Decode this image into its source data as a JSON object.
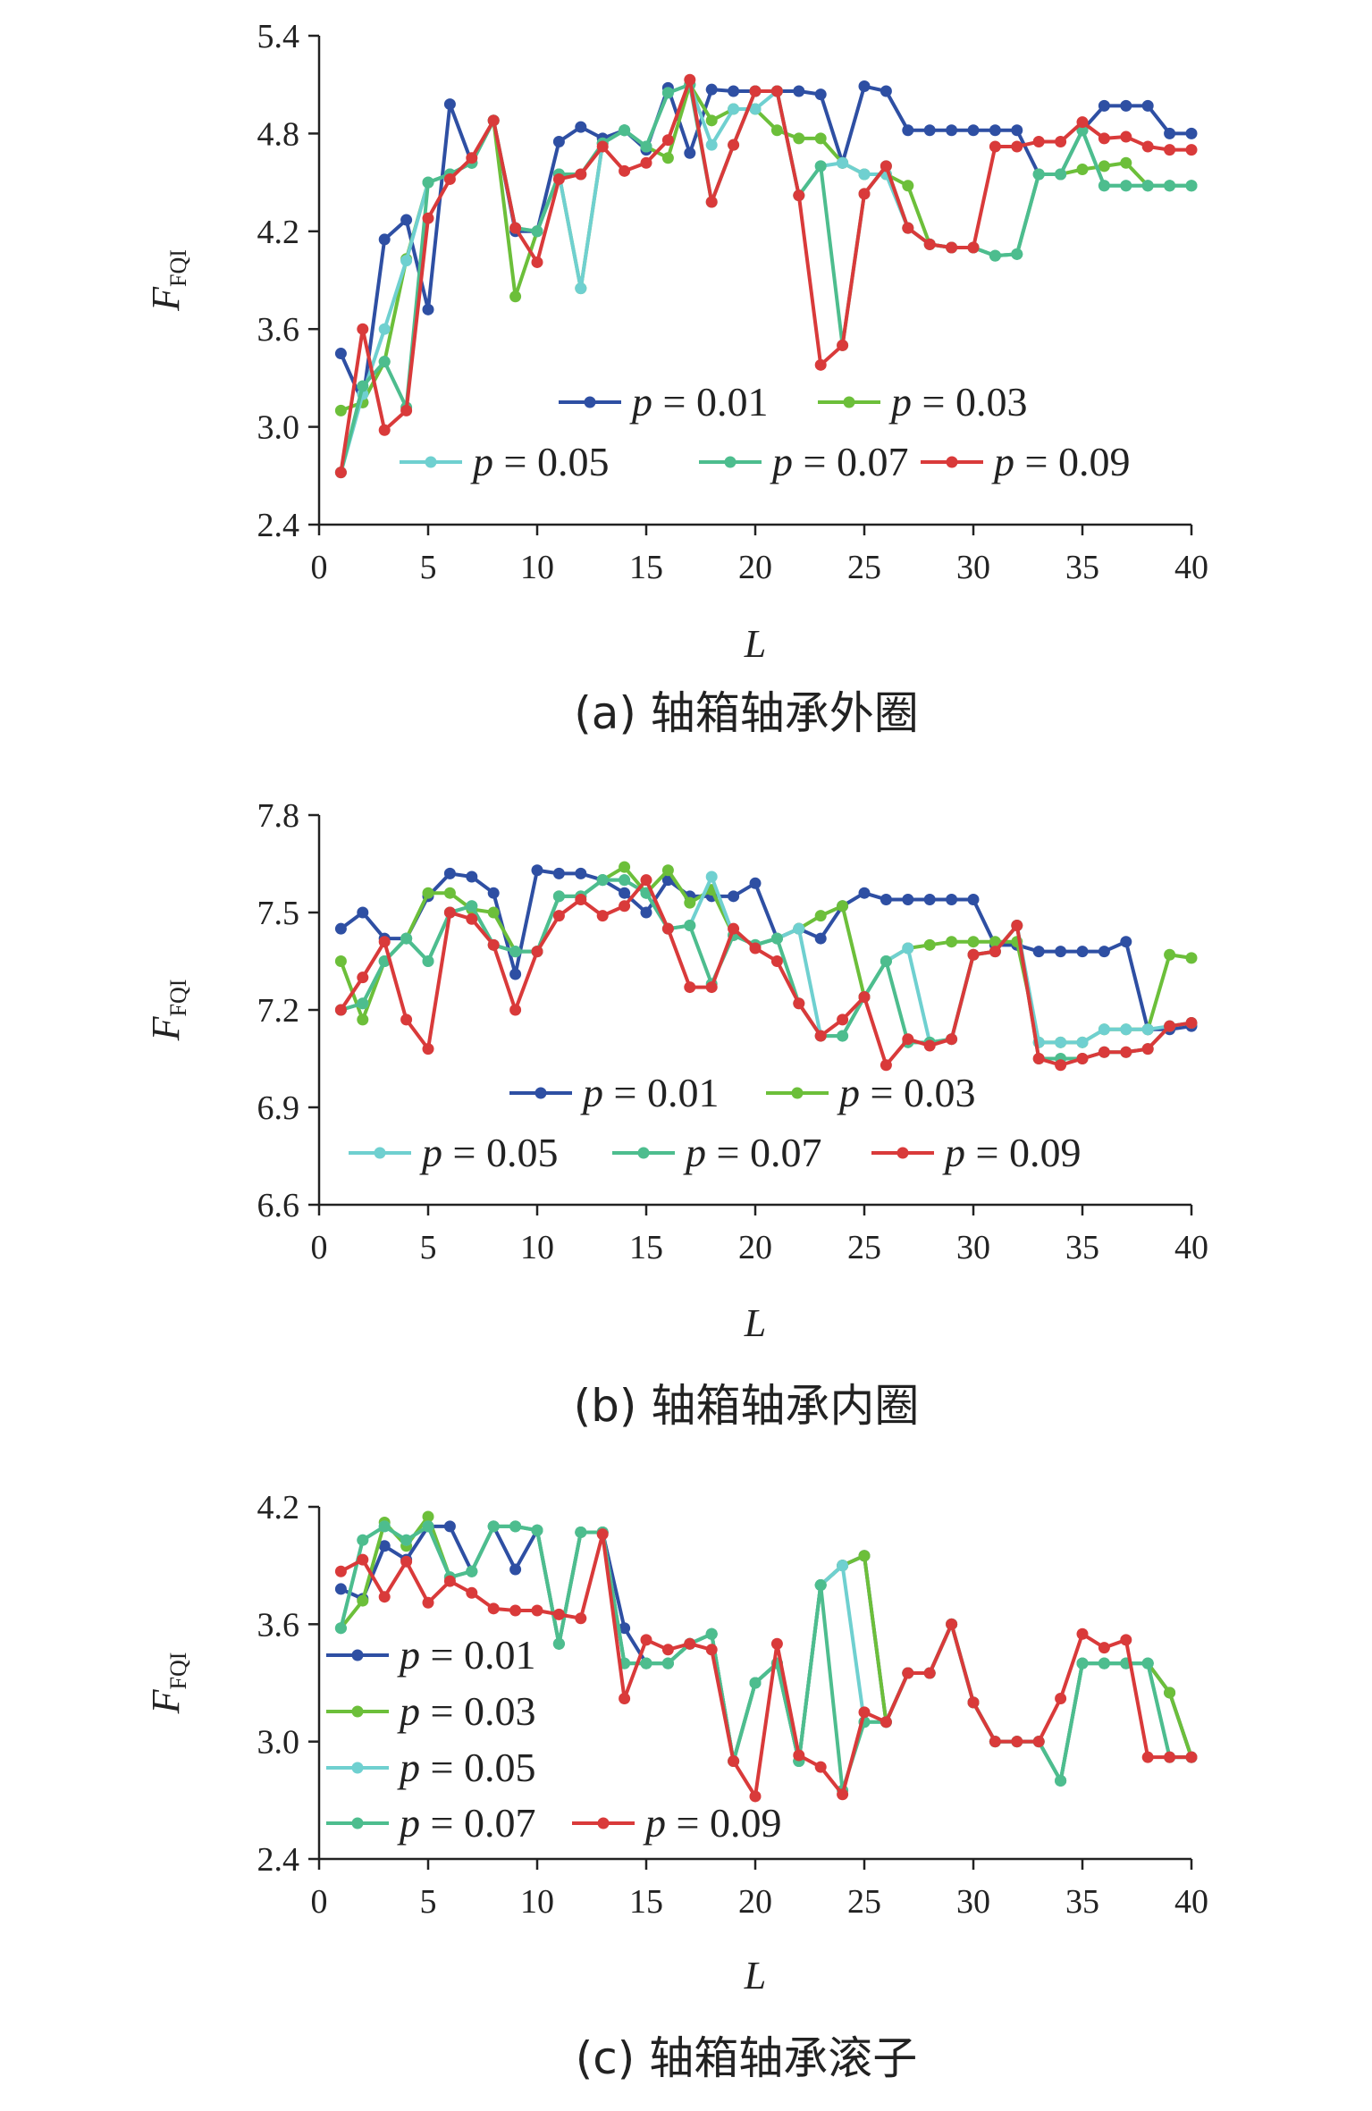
{
  "chart_data": [
    {
      "type": "line",
      "caption": "(a) 轴箱轴承外圈",
      "xlabel": "L",
      "ylabel": "F",
      "ylabel_sub": "FQI",
      "xlim": [
        0,
        40
      ],
      "ylim": [
        2.4,
        5.4
      ],
      "xticks": [
        "0",
        "5",
        "10",
        "15",
        "20",
        "25",
        "30",
        "35",
        "40"
      ],
      "yticks": [
        "2.4",
        "3.0",
        "3.6",
        "4.2",
        "4.8",
        "5.4"
      ],
      "legend_placement": "center",
      "x": [
        1,
        2,
        3,
        4,
        5,
        6,
        7,
        8,
        9,
        10,
        11,
        12,
        13,
        14,
        15,
        16,
        17,
        18,
        19,
        20,
        21,
        22,
        23,
        24,
        25,
        26,
        27,
        28,
        29,
        30,
        31,
        32,
        33,
        34,
        35,
        36,
        37,
        38,
        39,
        40
      ],
      "series": [
        {
          "name": "p = 0.01",
          "symbol": "p",
          "value_text": " = 0.01",
          "color": "#2e4fa3",
          "values": [
            3.45,
            3.15,
            4.15,
            4.27,
            3.72,
            4.98,
            4.62,
            4.88,
            4.2,
            4.2,
            4.75,
            4.84,
            4.77,
            4.82,
            4.7,
            5.08,
            4.68,
            5.07,
            5.06,
            5.06,
            5.06,
            5.06,
            5.04,
            4.62,
            5.09,
            5.06,
            4.82,
            4.82,
            4.82,
            4.82,
            4.82,
            4.82,
            4.55,
            4.55,
            4.82,
            4.97,
            4.97,
            4.97,
            4.8,
            4.8
          ]
        },
        {
          "name": "p = 0.03",
          "symbol": "p",
          "value_text": " = 0.03",
          "color": "#6cbf3a",
          "values": [
            3.1,
            3.15,
            3.4,
            4.03,
            4.5,
            4.55,
            4.62,
            4.88,
            3.8,
            4.2,
            4.55,
            3.85,
            4.74,
            4.82,
            4.72,
            4.65,
            5.1,
            4.88,
            4.95,
            4.95,
            4.82,
            4.77,
            4.77,
            4.62,
            4.55,
            4.55,
            4.48,
            4.12,
            4.1,
            4.1,
            4.05,
            4.06,
            4.55,
            4.55,
            4.58,
            4.6,
            4.62,
            4.48,
            4.48,
            4.48
          ]
        },
        {
          "name": "p = 0.05",
          "symbol": "p",
          "value_text": " = 0.05",
          "color": "#6fd0d0",
          "values": [
            2.72,
            3.2,
            3.6,
            4.02,
            4.5,
            4.55,
            4.62,
            4.88,
            4.22,
            4.2,
            4.55,
            3.85,
            4.74,
            4.82,
            4.72,
            5.05,
            5.1,
            4.73,
            4.95,
            4.95,
            5.06,
            4.42,
            4.6,
            4.62,
            4.55,
            4.55,
            4.22,
            4.12,
            4.1,
            4.1,
            4.05,
            4.06,
            4.55,
            4.55,
            4.82,
            4.48,
            4.48,
            4.48,
            4.48,
            4.48
          ]
        },
        {
          "name": "p = 0.07",
          "symbol": "p",
          "value_text": " = 0.07",
          "color": "#4dbd8e",
          "values": [
            2.72,
            3.25,
            3.4,
            3.12,
            4.5,
            4.55,
            4.62,
            4.88,
            4.22,
            4.2,
            4.55,
            4.55,
            4.74,
            4.82,
            4.72,
            5.05,
            5.1,
            4.38,
            4.73,
            5.06,
            5.06,
            4.42,
            4.6,
            3.5,
            4.43,
            4.6,
            4.22,
            4.12,
            4.1,
            4.1,
            4.05,
            4.06,
            4.55,
            4.55,
            4.82,
            4.48,
            4.48,
            4.48,
            4.48,
            4.48
          ]
        },
        {
          "name": "p = 0.09",
          "symbol": "p",
          "value_text": " = 0.09",
          "color": "#d93a3a",
          "values": [
            2.72,
            3.6,
            2.98,
            3.1,
            4.28,
            4.52,
            4.65,
            4.88,
            4.22,
            4.01,
            4.52,
            4.55,
            4.72,
            4.57,
            4.62,
            4.76,
            5.13,
            4.38,
            4.73,
            5.06,
            5.06,
            4.42,
            3.38,
            3.5,
            4.43,
            4.6,
            4.22,
            4.12,
            4.1,
            4.1,
            4.72,
            4.72,
            4.75,
            4.75,
            4.87,
            4.77,
            4.78,
            4.72,
            4.7,
            4.7
          ]
        }
      ]
    },
    {
      "type": "line",
      "caption": "(b) 轴箱轴承内圈",
      "xlabel": "L",
      "ylabel": "F",
      "ylabel_sub": "FQI",
      "xlim": [
        0,
        40
      ],
      "ylim": [
        6.6,
        7.8
      ],
      "xticks": [
        "0",
        "5",
        "10",
        "15",
        "20",
        "25",
        "30",
        "35",
        "40"
      ],
      "yticks": [
        "6.6",
        "6.9",
        "7.2",
        "7.5",
        "7.8"
      ],
      "legend_placement": "bottom-center",
      "x": [
        1,
        2,
        3,
        4,
        5,
        6,
        7,
        8,
        9,
        10,
        11,
        12,
        13,
        14,
        15,
        16,
        17,
        18,
        19,
        20,
        21,
        22,
        23,
        24,
        25,
        26,
        27,
        28,
        29,
        30,
        31,
        32,
        33,
        34,
        35,
        36,
        37,
        38,
        39,
        40
      ],
      "series": [
        {
          "name": "p = 0.01",
          "symbol": "p",
          "value_text": " = 0.01",
          "color": "#2e4fa3",
          "values": [
            7.45,
            7.5,
            7.42,
            7.42,
            7.55,
            7.62,
            7.61,
            7.56,
            7.31,
            7.63,
            7.62,
            7.62,
            7.6,
            7.56,
            7.5,
            7.6,
            7.55,
            7.55,
            7.55,
            7.59,
            7.42,
            7.45,
            7.42,
            7.52,
            7.56,
            7.54,
            7.54,
            7.54,
            7.54,
            7.54,
            7.4,
            7.4,
            7.38,
            7.38,
            7.38,
            7.38,
            7.41,
            7.14,
            7.14,
            7.15
          ]
        },
        {
          "name": "p = 0.03",
          "symbol": "p",
          "value_text": " = 0.03",
          "color": "#6cbf3a",
          "values": [
            7.35,
            7.17,
            7.35,
            7.42,
            7.56,
            7.56,
            7.51,
            7.5,
            7.38,
            7.38,
            7.55,
            7.55,
            7.6,
            7.64,
            7.56,
            7.63,
            7.53,
            7.57,
            7.43,
            7.4,
            7.42,
            7.45,
            7.49,
            7.52,
            7.24,
            7.35,
            7.39,
            7.4,
            7.41,
            7.41,
            7.41,
            7.41,
            7.1,
            7.1,
            7.1,
            7.14,
            7.14,
            7.14,
            7.37,
            7.36
          ]
        },
        {
          "name": "p = 0.05",
          "symbol": "p",
          "value_text": " = 0.05",
          "color": "#6fd0d0",
          "values": [
            7.2,
            7.22,
            7.35,
            7.42,
            7.35,
            7.5,
            7.52,
            7.4,
            7.38,
            7.38,
            7.55,
            7.55,
            7.6,
            7.6,
            7.56,
            7.45,
            7.46,
            7.61,
            7.43,
            7.4,
            7.42,
            7.45,
            7.12,
            7.12,
            7.24,
            7.35,
            7.39,
            7.1,
            7.11,
            7.37,
            7.38,
            7.46,
            7.1,
            7.1,
            7.1,
            7.14,
            7.14,
            7.14,
            7.15,
            7.16
          ]
        },
        {
          "name": "p = 0.07",
          "symbol": "p",
          "value_text": " = 0.07",
          "color": "#4dbd8e",
          "values": [
            7.2,
            7.22,
            7.35,
            7.42,
            7.35,
            7.5,
            7.52,
            7.4,
            7.38,
            7.38,
            7.55,
            7.55,
            7.6,
            7.6,
            7.56,
            7.45,
            7.46,
            7.28,
            7.43,
            7.4,
            7.42,
            7.22,
            7.12,
            7.12,
            7.24,
            7.35,
            7.1,
            7.1,
            7.11,
            7.37,
            7.38,
            7.46,
            7.05,
            7.05,
            7.05,
            7.07,
            7.07,
            7.08,
            7.15,
            7.16
          ]
        },
        {
          "name": "p = 0.09",
          "symbol": "p",
          "value_text": " = 0.09",
          "color": "#d93a3a",
          "values": [
            7.2,
            7.3,
            7.41,
            7.17,
            7.08,
            7.5,
            7.48,
            7.4,
            7.2,
            7.38,
            7.49,
            7.54,
            7.49,
            7.52,
            7.6,
            7.45,
            7.27,
            7.27,
            7.45,
            7.39,
            7.35,
            7.22,
            7.12,
            7.17,
            7.24,
            7.03,
            7.11,
            7.09,
            7.11,
            7.37,
            7.38,
            7.46,
            7.05,
            7.03,
            7.05,
            7.07,
            7.07,
            7.08,
            7.15,
            7.16
          ]
        }
      ]
    },
    {
      "type": "line",
      "caption": "(c) 轴箱轴承滚子",
      "xlabel": "L",
      "ylabel": "F",
      "ylabel_sub": "FQI",
      "xlim": [
        0,
        40
      ],
      "ylim": [
        2.4,
        4.2
      ],
      "xticks": [
        "0",
        "5",
        "10",
        "15",
        "20",
        "25",
        "30",
        "35",
        "40"
      ],
      "yticks": [
        "2.4",
        "3.0",
        "3.6",
        "4.2"
      ],
      "legend_placement": "left",
      "x": [
        1,
        2,
        3,
        4,
        5,
        6,
        7,
        8,
        9,
        10,
        11,
        12,
        13,
        14,
        15,
        16,
        17,
        18,
        19,
        20,
        21,
        22,
        23,
        24,
        25,
        26,
        27,
        28,
        29,
        30,
        31,
        32,
        33,
        34,
        35,
        36,
        37,
        38,
        39,
        40
      ],
      "series": [
        {
          "name": "p = 0.01",
          "symbol": "p",
          "value_text": " = 0.01",
          "color": "#2e4fa3",
          "values": [
            3.78,
            3.73,
            4.0,
            3.93,
            4.1,
            4.1,
            3.87,
            4.1,
            3.88,
            4.08,
            3.5,
            4.07,
            4.07,
            3.58,
            3.4,
            3.4,
            3.5,
            3.55,
            2.9,
            3.3,
            3.4,
            2.9,
            3.8,
            3.9,
            3.95,
            3.1,
            3.35,
            3.35,
            3.6,
            3.2,
            3.0,
            3.0,
            3.0,
            2.8,
            3.4,
            3.4,
            3.4,
            3.4,
            3.25,
            2.92
          ]
        },
        {
          "name": "p = 0.03",
          "symbol": "p",
          "value_text": " = 0.03",
          "color": "#6cbf3a",
          "values": [
            3.58,
            3.72,
            4.12,
            4.0,
            4.15,
            3.84,
            3.87,
            4.1,
            4.1,
            4.08,
            3.5,
            4.07,
            4.07,
            3.4,
            3.4,
            3.4,
            3.5,
            3.55,
            2.9,
            3.3,
            3.4,
            2.9,
            3.8,
            3.9,
            3.95,
            3.1,
            3.35,
            3.35,
            3.6,
            3.2,
            3.0,
            3.0,
            3.0,
            2.8,
            3.4,
            3.4,
            3.4,
            3.4,
            3.25,
            2.92
          ]
        },
        {
          "name": "p = 0.05",
          "symbol": "p",
          "value_text": " = 0.05",
          "color": "#6fd0d0",
          "values": [
            3.58,
            4.03,
            4.1,
            4.03,
            4.1,
            3.84,
            3.87,
            4.1,
            4.1,
            4.08,
            3.5,
            4.07,
            4.07,
            3.4,
            3.4,
            3.4,
            3.5,
            3.55,
            2.9,
            3.3,
            3.4,
            2.9,
            3.8,
            3.9,
            3.1,
            3.1,
            3.35,
            3.35,
            3.6,
            3.2,
            3.0,
            3.0,
            3.0,
            2.8,
            3.4,
            3.4,
            3.4,
            3.4,
            2.92,
            2.92
          ]
        },
        {
          "name": "p = 0.07",
          "symbol": "p",
          "value_text": " = 0.07",
          "color": "#4dbd8e",
          "values": [
            3.58,
            4.03,
            4.1,
            4.03,
            4.1,
            3.84,
            3.87,
            4.1,
            4.1,
            4.08,
            3.5,
            4.07,
            4.07,
            3.4,
            3.4,
            3.4,
            3.5,
            3.55,
            2.9,
            3.3,
            3.4,
            2.9,
            3.8,
            2.75,
            3.1,
            3.1,
            3.35,
            3.35,
            3.6,
            3.2,
            3.0,
            3.0,
            3.0,
            2.8,
            3.4,
            3.4,
            3.4,
            3.4,
            2.92,
            2.92
          ]
        },
        {
          "name": "p = 0.09",
          "symbol": "p",
          "value_text": " = 0.09",
          "color": "#d93a3a",
          "values": [
            3.87,
            3.93,
            3.74,
            3.92,
            3.71,
            3.82,
            3.76,
            3.68,
            3.67,
            3.67,
            3.65,
            3.63,
            4.06,
            3.22,
            3.52,
            3.47,
            3.5,
            3.47,
            2.9,
            2.72,
            3.5,
            2.93,
            2.87,
            2.73,
            3.15,
            3.1,
            3.35,
            3.35,
            3.6,
            3.2,
            3.0,
            3.0,
            3.0,
            3.22,
            3.55,
            3.48,
            3.52,
            2.92,
            2.92,
            2.92
          ]
        }
      ]
    }
  ]
}
